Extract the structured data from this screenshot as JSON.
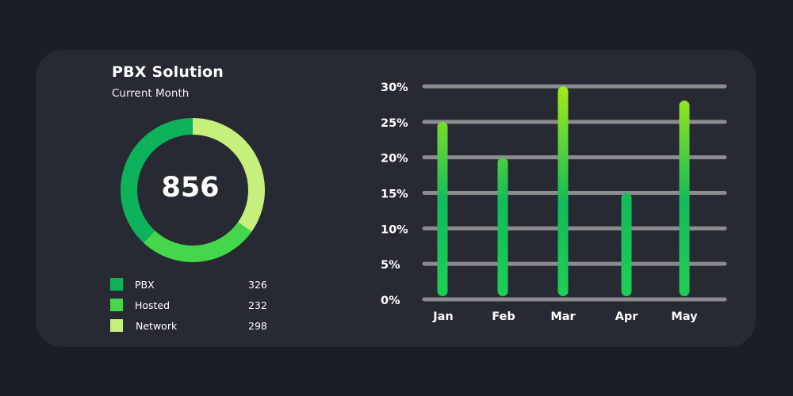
{
  "card": {
    "title": "PBX Solution",
    "subtitle": "Current Month"
  },
  "colors": {
    "background": "#1b1e25",
    "card": "#272a32",
    "grid": "#8a8c90",
    "bar_top": "#a4ea18",
    "bar_bottom": "#0db257"
  },
  "chart_data": [
    {
      "type": "pie",
      "title": "PBX Solution",
      "subtitle": "Current Month",
      "center_label": "856",
      "slices": [
        {
          "label": "PBX",
          "value": 326,
          "color": "#0db25a"
        },
        {
          "label": "Hosted",
          "value": 232,
          "color": "#45d64c"
        },
        {
          "label": "Network",
          "value": 298,
          "color": "#c6f07b"
        }
      ]
    },
    {
      "type": "bar",
      "categories": [
        "Jan",
        "Feb",
        "Mar",
        "Apr",
        "May"
      ],
      "values": [
        25,
        20,
        30,
        15,
        28
      ],
      "ylim": [
        0,
        30
      ],
      "yticks": [
        0,
        5,
        10,
        15,
        20,
        25,
        30
      ],
      "ytick_labels": [
        "0%",
        "5%",
        "10%",
        "15%",
        "20%",
        "25%",
        "30%"
      ],
      "grid": true,
      "xlabel": "",
      "ylabel": ""
    }
  ]
}
